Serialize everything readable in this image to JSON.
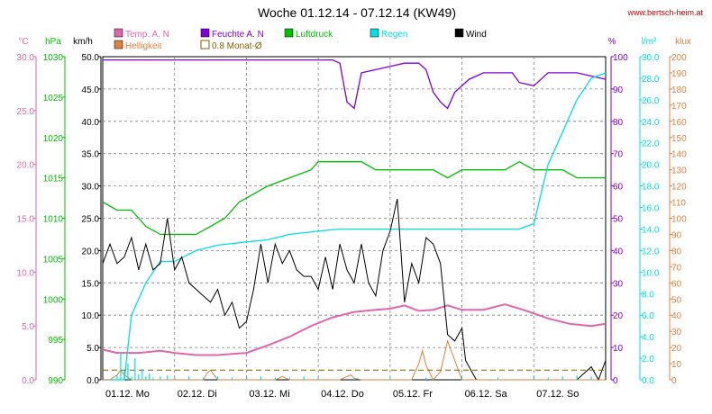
{
  "header": {
    "title": "Woche 01.12.14 - 07.12.14 (KW49)",
    "website": "www.bertsch-heim.at"
  },
  "colors": {
    "temp": "#e066b0",
    "humidity": "#8000e0",
    "pressure": "#00c000",
    "rain": "#00e0e0",
    "wind": "#000000",
    "brightness": "#e08040",
    "month_avg": "#806000",
    "grid": "#808080"
  },
  "chart_data": {
    "type": "line",
    "title": "Woche 01.12.14 - 07.12.14 (KW49)",
    "x": {
      "ticks": [
        "01.12.",
        "02.12.",
        "03.12.",
        "04.12.",
        "05.12.",
        "06.12.",
        "07.12."
      ],
      "day_labels": [
        "Mo",
        "Di",
        "Mi",
        "Do",
        "Fr",
        "Sa",
        "So"
      ],
      "range_days": [
        0,
        7
      ]
    },
    "legend": [
      {
        "key": "temp",
        "label": "Temp. A. N"
      },
      {
        "key": "humidity",
        "label": "Feuchte A. N"
      },
      {
        "key": "pressure",
        "label": "Luftdruck"
      },
      {
        "key": "rain",
        "label": "Regen"
      },
      {
        "key": "wind",
        "label": "Wind"
      },
      {
        "key": "brightness",
        "label": "Helligkeit"
      },
      {
        "key": "month_avg",
        "label": "0.8 Monat-Ø"
      }
    ],
    "axes": {
      "temp": {
        "unit": "°C",
        "ticks": [
          "30.0",
          "25.0",
          "20.0",
          "15.0",
          "10.0",
          "5.0",
          "0.0"
        ],
        "range": [
          0,
          30
        ]
      },
      "pressure": {
        "unit": "hPa",
        "ticks": [
          "1030",
          "1025",
          "1020",
          "1015",
          "1010",
          "1005",
          "1000",
          "995",
          "990"
        ],
        "range": [
          990,
          1030
        ]
      },
      "wind": {
        "unit": "km/h",
        "ticks": [
          "50.0",
          "45.0",
          "40.0",
          "35.0",
          "30.0",
          "25.0",
          "20.0",
          "15.0",
          "10.0",
          "5.0",
          "0.0"
        ],
        "range": [
          0,
          50
        ]
      },
      "humidity": {
        "unit": "%",
        "ticks": [
          "100",
          "90",
          "80",
          "70",
          "60",
          "50",
          "40",
          "30",
          "20",
          "10",
          "0"
        ],
        "range": [
          0,
          100
        ]
      },
      "rain": {
        "unit": "l/m²",
        "ticks": [
          "30.0",
          "28.0",
          "26.0",
          "24.0",
          "22.0",
          "20.0",
          "18.0",
          "16.0",
          "14.0",
          "12.0",
          "10.0",
          "8.0",
          "6.0",
          "4.0",
          "2.0",
          "0.0"
        ],
        "range": [
          0,
          30
        ]
      },
      "brightness": {
        "unit": "klux",
        "ticks": [
          "200",
          "190",
          "180",
          "170",
          "160",
          "150",
          "140",
          "130",
          "120",
          "110",
          "100",
          "90",
          "80",
          "70",
          "60",
          "50",
          "40",
          "30",
          "20",
          "10",
          "0"
        ],
        "range": [
          0,
          200
        ]
      }
    },
    "series": [
      {
        "key": "humidity",
        "name": "Feuchte A. N",
        "axis": "humidity",
        "x": [
          0,
          0.5,
          1,
          1.5,
          2,
          2.5,
          3,
          3.2,
          3.3,
          3.4,
          3.5,
          3.6,
          3.8,
          4.0,
          4.2,
          4.4,
          4.5,
          4.6,
          4.7,
          4.8,
          4.9,
          5.1,
          5.3,
          5.5,
          5.6,
          5.7,
          5.8,
          6.0,
          6.2,
          6.4,
          6.6,
          6.8,
          7.0
        ],
        "values": [
          99,
          99,
          99,
          99,
          99,
          99,
          99,
          99,
          98,
          86,
          84,
          95,
          96,
          97,
          98,
          98,
          96,
          89,
          86,
          84,
          89,
          93,
          95,
          95,
          95,
          95,
          92,
          91,
          95,
          95,
          95,
          94,
          93
        ]
      },
      {
        "key": "pressure",
        "name": "Luftdruck",
        "axis": "pressure",
        "x": [
          0,
          0.2,
          0.4,
          0.6,
          0.8,
          1.0,
          1.1,
          1.3,
          1.5,
          1.7,
          1.9,
          2.1,
          2.3,
          2.6,
          2.9,
          3.0,
          3.2,
          3.4,
          3.6,
          3.8,
          4.0,
          4.2,
          4.4,
          4.6,
          4.8,
          5.0,
          5.2,
          5.4,
          5.6,
          5.8,
          6.0,
          6.2,
          6.4,
          6.6,
          6.8,
          7.0
        ],
        "values": [
          1012,
          1011,
          1011,
          1009,
          1008,
          1008,
          1008,
          1008,
          1009,
          1010,
          1012,
          1013,
          1014,
          1015,
          1016,
          1017,
          1017,
          1017,
          1017,
          1016,
          1016,
          1016,
          1016,
          1016,
          1015,
          1016,
          1016,
          1016,
          1016,
          1017,
          1016,
          1016,
          1016,
          1015,
          1015,
          1015
        ]
      },
      {
        "key": "rain",
        "name": "Regen",
        "axis": "rain",
        "x": [
          0,
          0.2,
          0.3,
          0.4,
          0.6,
          0.8,
          1.0,
          1.3,
          1.6,
          2.0,
          2.3,
          2.6,
          3.0,
          3.3,
          3.6,
          4.0,
          4.5,
          5.0,
          5.5,
          5.8,
          6.0,
          6.2,
          6.4,
          6.6,
          6.8,
          7.0
        ],
        "values": [
          0,
          0,
          0,
          6,
          9,
          11,
          11,
          12,
          12.5,
          12.8,
          13,
          13.5,
          13.8,
          14,
          14,
          14,
          14,
          14,
          14,
          14,
          14.5,
          20,
          23,
          26,
          28,
          28.5
        ]
      },
      {
        "key": "temp",
        "name": "Temp. A. N",
        "axis": "temp",
        "x": [
          0,
          0.2,
          0.5,
          0.8,
          1.0,
          1.3,
          1.6,
          2.0,
          2.3,
          2.6,
          2.9,
          3.2,
          3.5,
          3.8,
          4.0,
          4.2,
          4.4,
          4.6,
          4.8,
          5.0,
          5.3,
          5.6,
          5.9,
          6.2,
          6.5,
          6.8,
          7.0
        ],
        "values": [
          2.8,
          2.5,
          2.5,
          2.7,
          2.5,
          2.3,
          2.3,
          2.5,
          3.2,
          4.0,
          5.0,
          5.8,
          6.3,
          6.5,
          6.6,
          6.9,
          6.4,
          6.5,
          6.9,
          6.5,
          6.5,
          7.0,
          6.4,
          5.7,
          5.2,
          5.0,
          5.2
        ]
      },
      {
        "key": "wind",
        "name": "Wind",
        "axis": "wind",
        "x": [
          0,
          0.1,
          0.2,
          0.3,
          0.4,
          0.5,
          0.6,
          0.7,
          0.8,
          0.9,
          1.0,
          1.1,
          1.2,
          1.3,
          1.4,
          1.5,
          1.6,
          1.7,
          1.8,
          1.9,
          2.0,
          2.1,
          2.2,
          2.3,
          2.4,
          2.5,
          2.6,
          2.7,
          2.8,
          2.9,
          3.0,
          3.1,
          3.2,
          3.3,
          3.4,
          3.5,
          3.6,
          3.7,
          3.8,
          3.9,
          4.0,
          4.1,
          4.2,
          4.3,
          4.4,
          4.5,
          4.6,
          4.7,
          4.8,
          4.9,
          5.0,
          5.05,
          5.1,
          5.2,
          5.3,
          5.4,
          5.5,
          5.6,
          5.8,
          6.0,
          6.2,
          6.4,
          6.6,
          6.7,
          6.8,
          6.9,
          7.0
        ],
        "values": [
          18,
          21,
          18,
          19,
          22,
          17,
          21,
          17,
          18,
          25,
          17,
          19,
          15,
          14,
          13,
          12,
          14,
          10,
          12,
          8,
          9,
          14,
          21,
          15,
          21,
          18,
          20,
          17,
          16,
          16,
          14,
          19,
          14,
          21,
          17,
          15,
          21,
          15,
          13,
          20,
          23,
          28,
          12,
          18,
          15,
          22,
          21,
          18,
          7,
          6,
          8,
          3,
          2,
          0,
          0,
          0,
          0,
          0,
          0,
          0,
          0,
          0,
          0,
          1,
          2,
          0,
          3
        ]
      },
      {
        "key": "brightness",
        "name": "Helligkeit",
        "axis": "brightness",
        "x": [
          0,
          0.1,
          0.2,
          0.25,
          0.3,
          0.4,
          1.3,
          1.4,
          1.45,
          1.5,
          1.6,
          2.4,
          2.45,
          2.5,
          2.6,
          3.3,
          3.4,
          3.45,
          3.5,
          3.6,
          4.3,
          4.4,
          4.45,
          4.5,
          4.6,
          4.7,
          4.8,
          4.9,
          5.0,
          5.1,
          5.2,
          6.0,
          7.0
        ],
        "values": [
          0,
          0,
          3,
          6,
          3,
          0,
          0,
          0,
          4,
          6,
          0,
          0,
          1,
          2,
          0,
          0,
          2,
          3,
          1,
          0,
          0,
          10,
          18,
          9,
          0,
          5,
          24,
          12,
          0,
          0,
          0,
          0,
          0
        ]
      },
      {
        "key": "month_avg",
        "name": "0.8 Monat-Ø",
        "axis": "brightness",
        "x": [
          0,
          7
        ],
        "values": [
          6,
          6
        ]
      },
      {
        "key": "wind_gust_bars",
        "name": "Regen",
        "axis": "rain",
        "x": [
          0.2,
          0.25,
          0.3,
          0.35,
          0.4,
          0.45,
          0.5,
          0.55,
          0.6,
          0.65,
          0.7,
          0.8,
          0.9,
          1.0,
          1.2,
          1.4,
          1.6,
          1.8,
          2.0,
          2.2,
          2.4,
          2.6,
          2.8,
          3.0,
          3.5,
          4.0,
          4.5,
          5.0,
          5.5,
          6.0,
          6.2,
          6.4,
          6.6,
          6.8
        ],
        "values": [
          0.4,
          2.5,
          0.8,
          1.5,
          0.3,
          2.0,
          0.5,
          1.0,
          0.3,
          0.6,
          0.2,
          0.3,
          0.4,
          0.2,
          0.3,
          0.2,
          0.3,
          0.2,
          0.2,
          0.3,
          0.2,
          0.2,
          0.3,
          0.2,
          0.2,
          0.2,
          0.2,
          0.2,
          0.2,
          0.3,
          0.2,
          0.3,
          0.4,
          0.3
        ]
      }
    ]
  }
}
